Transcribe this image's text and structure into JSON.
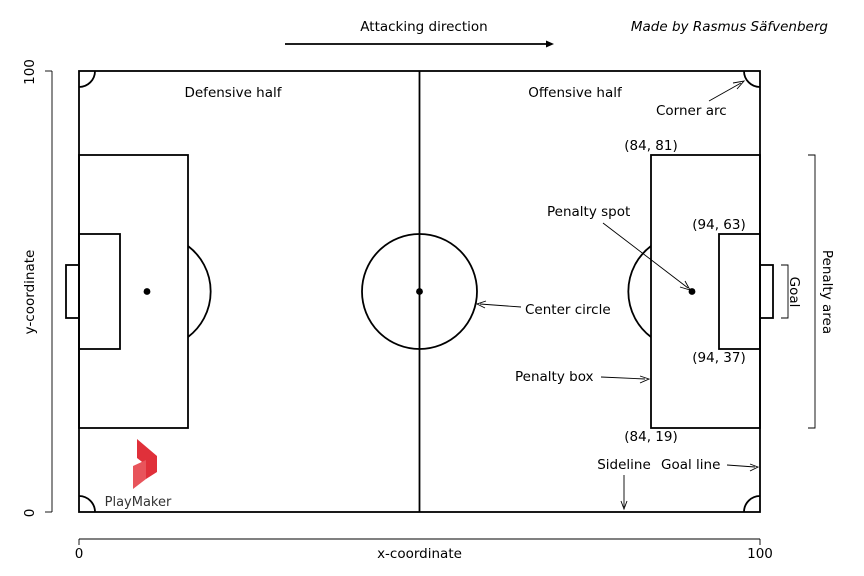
{
  "header": {
    "attacking_direction": "Attacking direction",
    "credit": "Made by Rasmus Säfvenberg"
  },
  "pitch": {
    "defensive_half": "Defensive half",
    "offensive_half": "Offensive half"
  },
  "annotations": {
    "corner_arc": "Corner arc",
    "penalty_spot": "Penalty spot",
    "center_circle": "Center circle",
    "penalty_box": "Penalty box",
    "sideline": "Sideline",
    "goal_line": "Goal line",
    "goal": "Goal",
    "penalty_area": "Penalty area"
  },
  "coordinates": {
    "c84_81": "(84, 81)",
    "c94_63": "(94, 63)",
    "c94_37": "(94, 37)",
    "c84_19": "(84, 19)"
  },
  "axes": {
    "xlabel": "x-coordinate",
    "ylabel": "y-coordinate",
    "x_min": "0",
    "x_max": "100",
    "y_min": "0",
    "y_max": "100"
  },
  "logo": {
    "text": "PlayMaker",
    "brand_color": "#e0303a"
  }
}
